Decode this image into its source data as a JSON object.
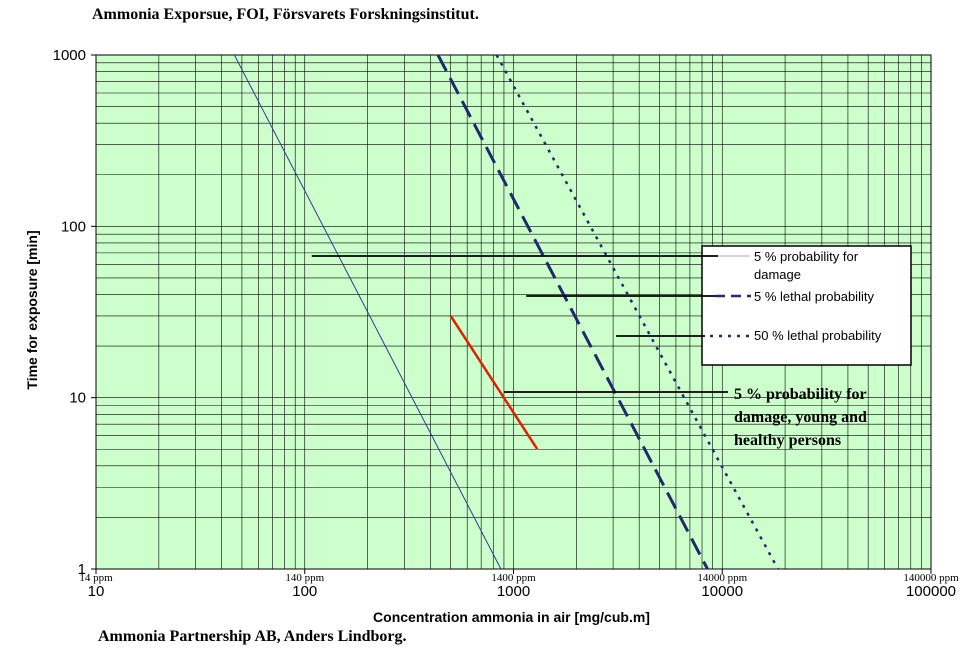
{
  "header": {
    "title": "Ammonia Exporsue, FOI, Försvarets Forskningsinstitut."
  },
  "footer": {
    "credit": "Ammonia Partnership AB, Anders Lindborg."
  },
  "chart_data": {
    "type": "line",
    "title": "",
    "xlabel": "Concentration ammonia in air [mg/cub.m]",
    "ylabel": "Time for exposure [min]",
    "x_scale": "log",
    "y_scale": "log",
    "xlim": [
      10,
      100000
    ],
    "ylim": [
      1,
      1000
    ],
    "grid": true,
    "plot_background": "#ccffcc",
    "x_ticks": [
      {
        "value": 10,
        "label": "10",
        "ppm": "14 ppm"
      },
      {
        "value": 100,
        "label": "100",
        "ppm": "140 ppm"
      },
      {
        "value": 1000,
        "label": "1000",
        "ppm": "1400 ppm"
      },
      {
        "value": 10000,
        "label": "10000",
        "ppm": "14000 ppm"
      },
      {
        "value": 100000,
        "label": "100000",
        "ppm": "140000 ppm"
      }
    ],
    "y_ticks": [
      {
        "value": 1,
        "label": "1"
      },
      {
        "value": 10,
        "label": "10"
      },
      {
        "value": 100,
        "label": "100"
      },
      {
        "value": 1000,
        "label": "1000"
      }
    ],
    "legend_position": "right",
    "series": [
      {
        "name": "5 % probability for damage",
        "style": "solid",
        "color": "#2e3d8f",
        "width": 1,
        "x": [
          46,
          870
        ],
        "y": [
          1000,
          1
        ]
      },
      {
        "name": "5 % lethal probability",
        "style": "dashed",
        "color": "#1f2a6b",
        "width": 3,
        "x": [
          435,
          8500
        ],
        "y": [
          1000,
          1
        ]
      },
      {
        "name": "50 % lethal probability",
        "style": "dotted",
        "color": "#1f2a6b",
        "width": 2.5,
        "x": [
          830,
          18500
        ],
        "y": [
          1000,
          1
        ]
      },
      {
        "name": "5 % probability for damage, young and healthy persons",
        "style": "solid",
        "color": "#dd2200",
        "width": 2.5,
        "x": [
          500,
          1300
        ],
        "y": [
          30,
          5
        ]
      }
    ],
    "annotations": [
      {
        "series": 0,
        "at": {
          "x": 108,
          "y": 66
        }
      },
      {
        "series": 1,
        "at": {
          "x": 1150,
          "y": 38
        }
      },
      {
        "series": 2,
        "at": {
          "x": 3100,
          "y": 22.5
        }
      },
      {
        "series": 3,
        "at": {
          "x": 900,
          "y": 10.5
        }
      }
    ]
  }
}
